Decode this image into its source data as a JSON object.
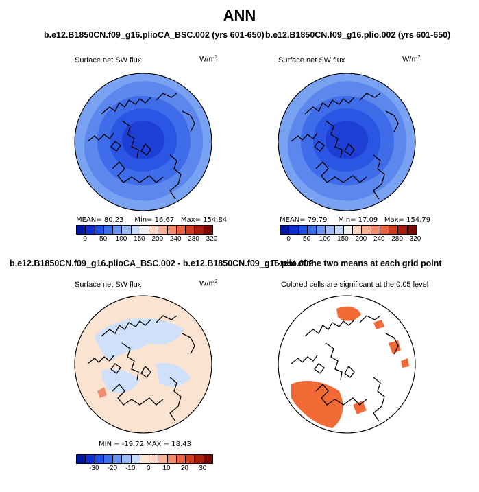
{
  "title": "ANN",
  "panels": [
    {
      "run": "b.e12.B1850CN.f09_g16.plioCA_BSC.002 (yrs 601-650)",
      "variable": "Surface net SW flux",
      "units": "W/m",
      "units_sup": "2",
      "stats": {
        "mean": "MEAN=  80.23",
        "min": "Min=  16.67",
        "max": "Max= 154.84"
      }
    },
    {
      "run": "b.e12.B1850CN.f09_g16.plio.002 (yrs 601-650)",
      "variable": "Surface net SW flux",
      "units": "W/m",
      "units_sup": "2",
      "stats": {
        "mean": "MEAN=  79.79",
        "min": "Min=  17.09",
        "max": "Max= 154.79"
      }
    },
    {
      "run": "b.e12.B1850CN.f09_g16.plioCA_BSC.002 - b.e12.B1850CN.f09_g16.plio.002",
      "variable": "Surface net SW flux",
      "units": "W/m",
      "units_sup": "2",
      "stats": {
        "text": "MIN = -19.72  MAX =  18.43"
      }
    },
    {
      "run": "T-test of the two means at each grid point",
      "variable": "Colored cells are significant at the 0.05 level"
    }
  ],
  "colorbars": {
    "absolute": {
      "colors": [
        "#00179f",
        "#0d2fd1",
        "#1d4ee6",
        "#3c6ee8",
        "#6a93ee",
        "#9bbaf4",
        "#c8dbfa",
        "#f1f1f1",
        "#fbd6c3",
        "#f7b298",
        "#f08d6e",
        "#e66443",
        "#cf3b1f",
        "#a71d0c",
        "#7c0a04"
      ],
      "ticks": [
        "0",
        "50",
        "100",
        "150",
        "200",
        "240",
        "280",
        "320"
      ]
    },
    "difference": {
      "colors": [
        "#00179f",
        "#0d2fd1",
        "#1d4ee6",
        "#3c6ee8",
        "#6a93ee",
        "#9bbaf4",
        "#c8dbfa",
        "#fde6d4",
        "#fbd6c3",
        "#f7b298",
        "#f08d6e",
        "#e66443",
        "#cf3b1f",
        "#a71d0c",
        "#7c0a04"
      ],
      "ticks": [
        "-30",
        "-20",
        "-10",
        "0",
        "10",
        "20",
        "30"
      ]
    }
  },
  "map_colors": {
    "polar": "#1d3fd6",
    "inner": "#2b55e3",
    "mid": "#3f6ce8",
    "outer": "#5c88ee",
    "rim": "#7aa2f2",
    "diff_pos": "#fbe3d2",
    "diff_neg": "#cfe0fa",
    "diff_strong": "#f08d6e",
    "sig": "#f26a35",
    "coast": "#000000"
  }
}
